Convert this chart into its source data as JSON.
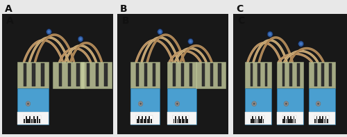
{
  "panels": [
    "A",
    "B",
    "C"
  ],
  "panel_label_fontsize": 10,
  "figsize": [
    5.0,
    1.97
  ],
  "dpi": 100,
  "outer_bg": "#e8e8e8",
  "photo_bg": "#181818",
  "strip_blue": "#4a9fd0",
  "strip_blue_light": "#6ab8e8",
  "strip_white": "#f0f0f0",
  "wire_copper": "#c8a070",
  "wire_copper2": "#d4b480",
  "wire_copper3": "#b89060",
  "connector_plastic": "#c8cfa0",
  "connector_plastic2": "#d8ddb0",
  "prong_dark": "#303030",
  "rivet_gray": "#909090",
  "rivet_dark": "#555555",
  "blue_cap": "#3060a0",
  "blue_cap2": "#4878c8",
  "barcode_white": "#f8f8f8",
  "panel_label_color": "#111111",
  "border_color": "#cccccc"
}
